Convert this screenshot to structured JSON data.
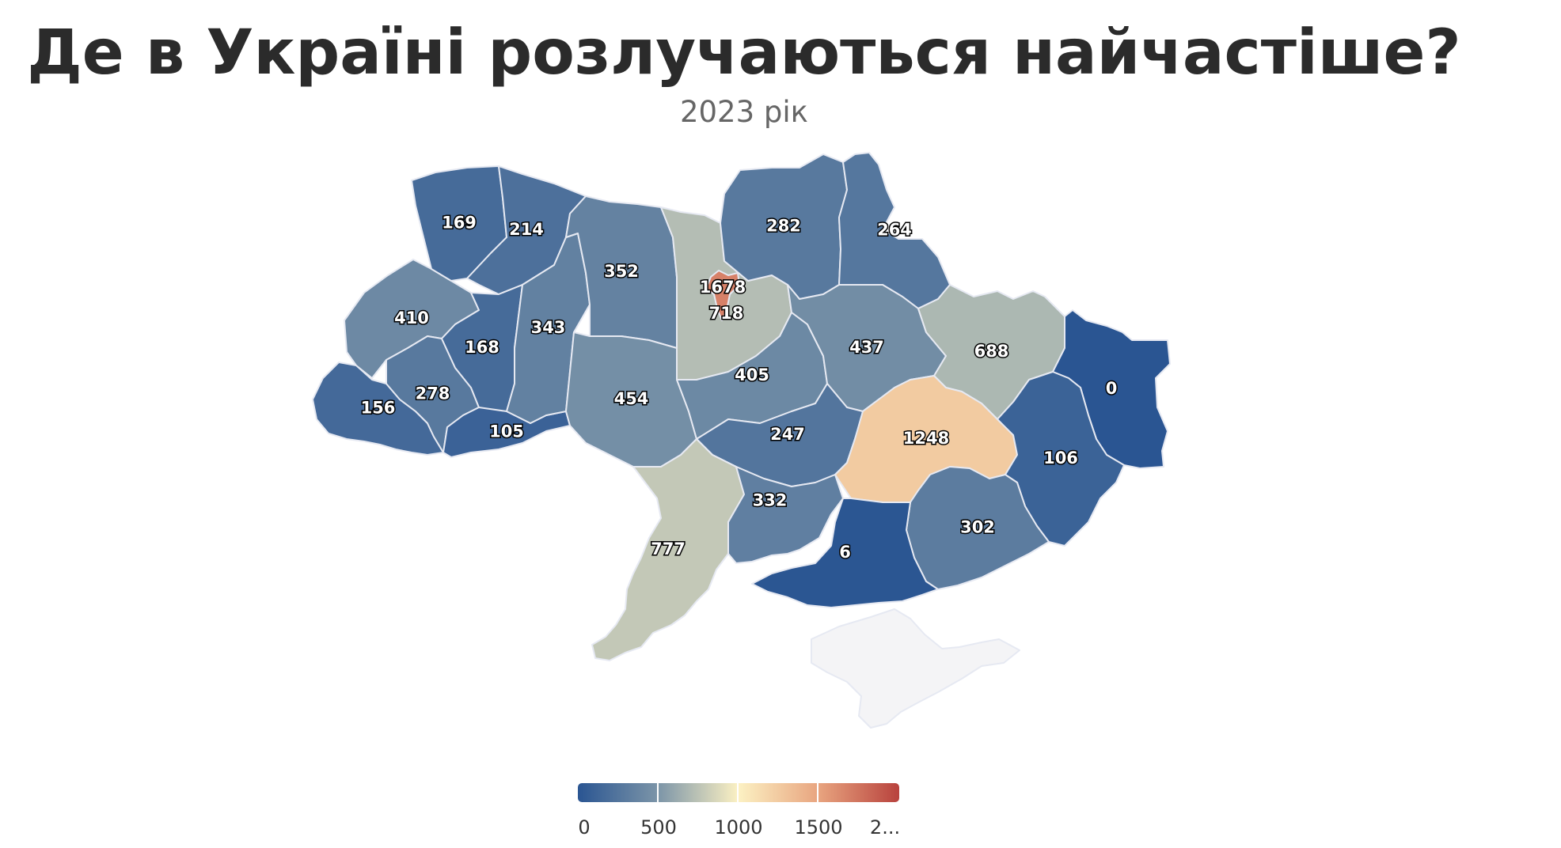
{
  "header": {
    "title": "Де в Україні розлучаються найчастіше?",
    "subtitle": "2023 рік"
  },
  "map": {
    "regions": [
      {
        "id": "volyn",
        "label": "169",
        "value": 169
      },
      {
        "id": "rivne",
        "label": "214",
        "value": 214
      },
      {
        "id": "zhytomyr",
        "label": "352",
        "value": 352
      },
      {
        "id": "kyiv-oblast",
        "label": "718",
        "value": 718
      },
      {
        "id": "kyiv-city",
        "label": "1678",
        "value": 1678
      },
      {
        "id": "chernihiv",
        "label": "282",
        "value": 282
      },
      {
        "id": "sumy",
        "label": "264",
        "value": 264
      },
      {
        "id": "lviv",
        "label": "410",
        "value": 410
      },
      {
        "id": "ternopil",
        "label": "168",
        "value": 168
      },
      {
        "id": "khmelnytskyi",
        "label": "343",
        "value": 343
      },
      {
        "id": "poltava",
        "label": "437",
        "value": 437
      },
      {
        "id": "kharkiv",
        "label": "688",
        "value": 688
      },
      {
        "id": "luhansk",
        "label": "0",
        "value": 0
      },
      {
        "id": "zakarpattia",
        "label": "156",
        "value": 156
      },
      {
        "id": "ivano-frankivsk",
        "label": "278",
        "value": 278
      },
      {
        "id": "chernivtsi",
        "label": "105",
        "value": 105
      },
      {
        "id": "vinnytsia",
        "label": "454",
        "value": 454
      },
      {
        "id": "cherkasy",
        "label": "405",
        "value": 405
      },
      {
        "id": "kirovohrad",
        "label": "247",
        "value": 247
      },
      {
        "id": "dnipropetrovsk",
        "label": "1248",
        "value": 1248
      },
      {
        "id": "donetsk",
        "label": "106",
        "value": 106
      },
      {
        "id": "odesa",
        "label": "777",
        "value": 777
      },
      {
        "id": "mykolaiv",
        "label": "332",
        "value": 332
      },
      {
        "id": "kherson",
        "label": "6",
        "value": 6
      },
      {
        "id": "zaporizhzhia",
        "label": "302",
        "value": 302
      },
      {
        "id": "crimea",
        "label": "",
        "value": null
      }
    ],
    "colors": {
      "scale": [
        "#2a5592",
        "#7c95a8",
        "#fcf1c3",
        "#e8a47f",
        "#b8423d"
      ],
      "no_data": "#f4f4f6",
      "border": "#e6e9f2"
    }
  },
  "legend": {
    "min": 0,
    "max": 2000,
    "ticks": [
      "0",
      "500",
      "1000",
      "1500",
      "2..."
    ]
  }
}
